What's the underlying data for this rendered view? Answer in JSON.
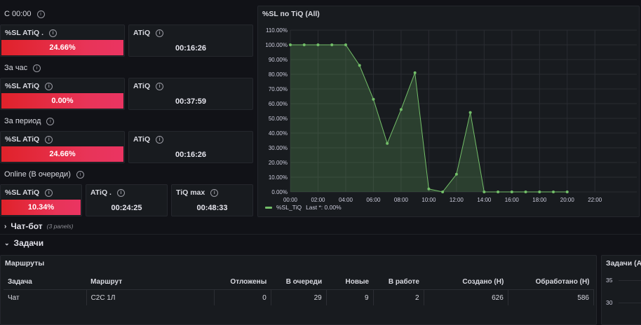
{
  "rows": {
    "since_midnight": "С 00:00",
    "per_hour": "За час",
    "per_period": "За период",
    "online": "Online (В очереди)"
  },
  "stats": {
    "r1": {
      "sl_title": "%SL ATiQ .",
      "sl_value": "24.66%",
      "atiq_title": "ATiQ",
      "atiq_value": "00:16:26"
    },
    "r2": {
      "sl_title": "%SL ATiQ",
      "sl_value": "0.00%",
      "atiq_title": "ATiQ",
      "atiq_value": "00:37:59"
    },
    "r3": {
      "sl_title": "%SL ATiQ",
      "sl_value": "24.66%",
      "atiq_title": "ATiQ",
      "atiq_value": "00:16:26"
    },
    "r4": {
      "sl_title": "%SL ATiQ",
      "sl_value": "10.34%",
      "atiq_title": "ATiQ .",
      "atiq_value": "00:24:25",
      "tiq_title": "TiQ max",
      "tiq_value": "00:48:33"
    }
  },
  "chart_panel": {
    "title": "%SL по TiQ (All)",
    "legend_series": "%SL_TiQ",
    "legend_last": "Last *: 0.00%"
  },
  "chart_data": {
    "type": "area",
    "x": [
      "00:00",
      "01:00",
      "02:00",
      "03:00",
      "04:00",
      "05:00",
      "06:00",
      "07:00",
      "08:00",
      "09:00",
      "10:00",
      "11:00",
      "12:00",
      "13:00",
      "14:00",
      "15:00",
      "16:00",
      "17:00",
      "18:00",
      "19:00",
      "20:00"
    ],
    "series": [
      {
        "name": "%SL_TiQ",
        "values": [
          100,
          100,
          100,
          100,
          100,
          86,
          63,
          33,
          56,
          81,
          2,
          0,
          12,
          54,
          0,
          0,
          0,
          0,
          0,
          0,
          0
        ]
      }
    ],
    "x_ticks": [
      "00:00",
      "02:00",
      "04:00",
      "06:00",
      "08:00",
      "10:00",
      "12:00",
      "14:00",
      "16:00",
      "18:00",
      "20:00",
      "22:00"
    ],
    "y_ticks": [
      "0.00%",
      "10.00%",
      "20.00%",
      "30.00%",
      "40.00%",
      "50.00%",
      "60.00%",
      "70.00%",
      "80.00%",
      "90.00%",
      "100.00%",
      "110.00%"
    ],
    "ylim": [
      0,
      110
    ],
    "xlim_hours": [
      0,
      23
    ],
    "grid": true,
    "legend_position": "bottom-left",
    "color": "#73bf69"
  },
  "sections": {
    "chatbot": {
      "label": "Чат-бот",
      "sub": "(3 panels)"
    },
    "tasks": {
      "label": "Задачи"
    }
  },
  "routes": {
    "title": "Маршруты",
    "columns": [
      "Задача",
      "Маршрут",
      "Отложены",
      "В очереди",
      "Новые",
      "В работе",
      "Создано (Н)",
      "Обработано (Н)"
    ],
    "rows": [
      [
        "Чат",
        "C2C 1Л",
        "0",
        "29",
        "9",
        "2",
        "626",
        "586"
      ]
    ]
  },
  "right_panel": {
    "title": "Задачи (All",
    "y_ticks": [
      "35",
      "30"
    ]
  }
}
